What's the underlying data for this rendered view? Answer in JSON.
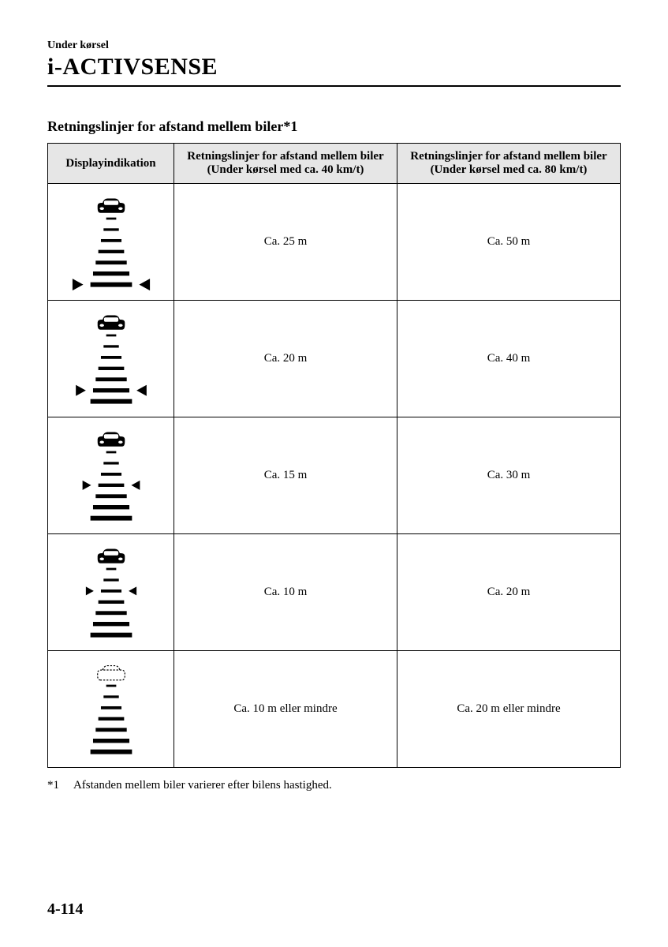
{
  "header": {
    "breadcrumb": "Under kørsel",
    "title": "i-ACTIVSENSE"
  },
  "subheading": {
    "text": "Retningslinjer for afstand mellem biler",
    "suffix": "*1"
  },
  "table": {
    "columns": [
      {
        "line1": "Displayindikation",
        "line2": ""
      },
      {
        "line1": "Retningslinjer for afstand mellem biler",
        "line2": "(Under kørsel med ca. 40 km/t)"
      },
      {
        "line1": "Retningslinjer for afstand mellem biler",
        "line2": "(Under kørsel med ca. 80 km/t)"
      }
    ],
    "rows": [
      {
        "icon": {
          "arrow_level": 4,
          "car_outline": false
        },
        "col40": "Ca. 25 m",
        "col80": "Ca. 50 m"
      },
      {
        "icon": {
          "arrow_level": 3,
          "car_outline": false
        },
        "col40": "Ca. 20 m",
        "col80": "Ca. 40 m"
      },
      {
        "icon": {
          "arrow_level": 2,
          "car_outline": false
        },
        "col40": "Ca. 15 m",
        "col80": "Ca. 30 m"
      },
      {
        "icon": {
          "arrow_level": 1,
          "car_outline": false
        },
        "col40": "Ca. 10 m",
        "col80": "Ca. 20 m"
      },
      {
        "icon": {
          "arrow_level": 0,
          "car_outline": true
        },
        "col40": "Ca. 10 m eller mindre",
        "col80": "Ca. 20 m eller mindre"
      }
    ],
    "header_bg": "#e6e6e6",
    "border_color": "#000000"
  },
  "footnote": {
    "ref": "*1",
    "text": "Afstanden mellem biler varierer efter bilens hastighed."
  },
  "page_number": "4-114"
}
